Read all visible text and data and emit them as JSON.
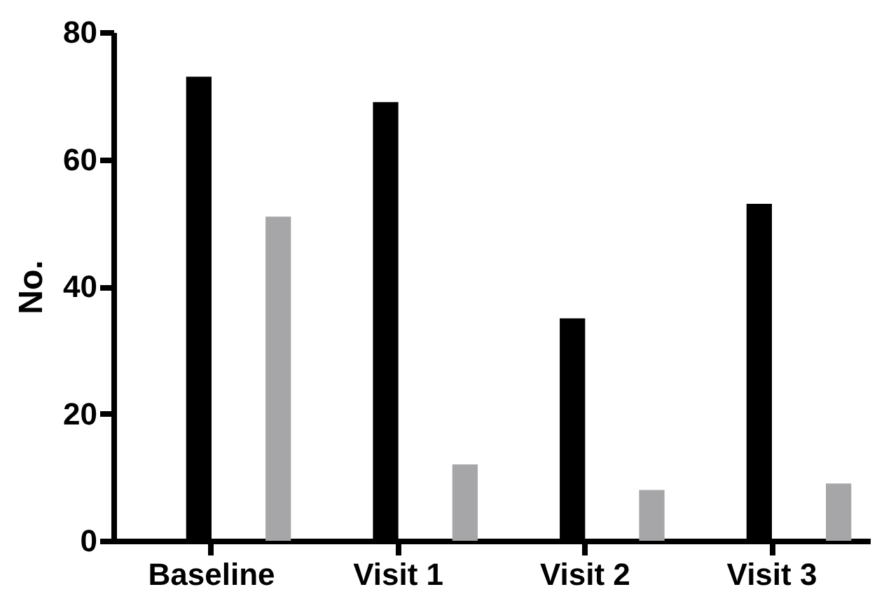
{
  "chart_data": {
    "type": "bar",
    "ylabel": "No.",
    "categories": [
      "Baseline",
      "Visit 1",
      "Visit 2",
      "Visit 3"
    ],
    "series": [
      {
        "color": "#000000",
        "values": [
          73,
          69,
          35,
          53
        ]
      },
      {
        "color": "#a6a6a8",
        "values": [
          51,
          12,
          8,
          9
        ]
      }
    ],
    "ylim": [
      0,
      80
    ],
    "yticks": [
      0,
      20,
      40,
      60,
      80
    ],
    "grid": false,
    "legend": false
  }
}
